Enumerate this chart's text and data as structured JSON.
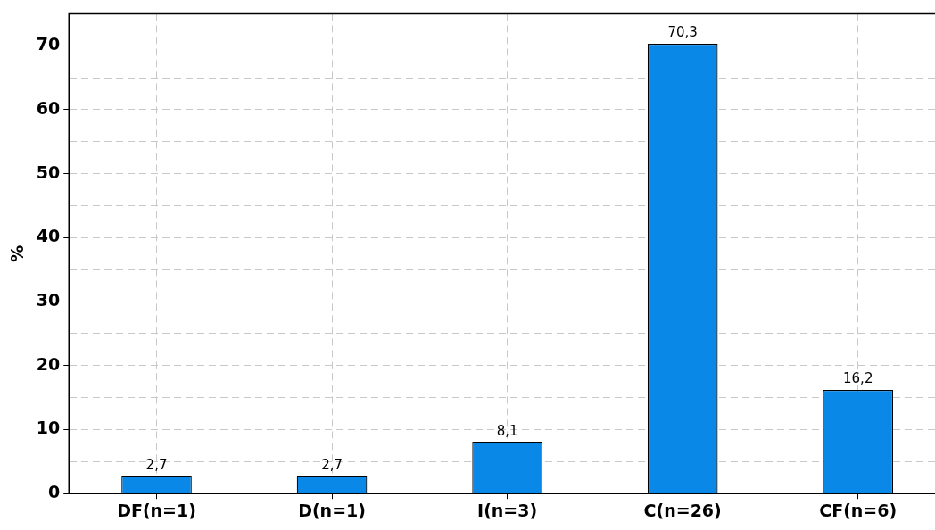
{
  "chart_data": {
    "type": "bar",
    "ylabel": "%",
    "categories": [
      "DF(n=1)",
      "D(n=1)",
      "I(n=3)",
      "C(n=26)",
      "CF(n=6)"
    ],
    "values": [
      2.7,
      2.7,
      8.1,
      70.3,
      16.2
    ],
    "value_labels": [
      "2,7",
      "2,7",
      "8,1",
      "70,3",
      "16,2"
    ],
    "color": "#0a88e8",
    "ylim": [
      0,
      75
    ],
    "yticks": [
      0,
      {
        "value": 5,
        "label": null
      },
      10,
      {
        "value": 15,
        "label": null
      },
      20,
      {
        "value": 25,
        "label": null
      },
      30,
      {
        "value": 35,
        "label": null
      },
      40,
      {
        "value": 45,
        "label": null
      },
      50,
      {
        "value": 55,
        "label": null
      },
      60,
      {
        "value": 65,
        "label": null
      },
      70
    ],
    "grid": true,
    "legend": false
  }
}
